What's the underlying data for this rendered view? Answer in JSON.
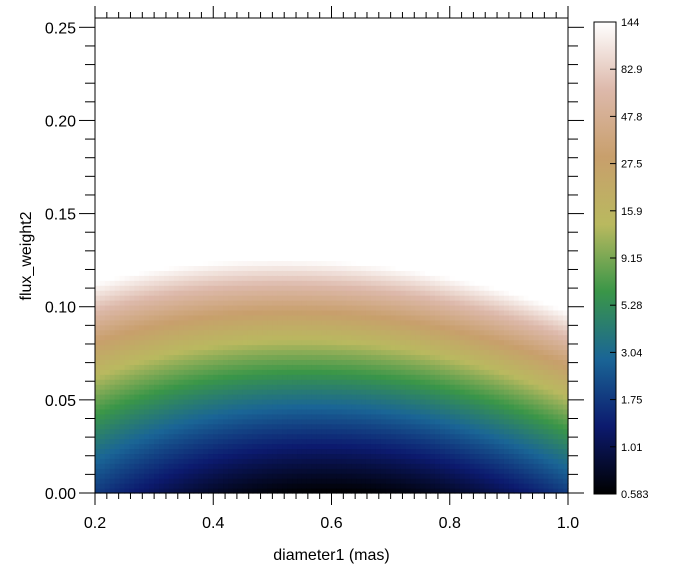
{
  "chart_data": {
    "type": "heatmap",
    "title": "",
    "xlabel": "diameter1 (mas)",
    "ylabel": "flux_weight2",
    "xlim": [
      0.2,
      1.0
    ],
    "ylim": [
      0.0,
      0.255
    ],
    "x_ticks": [
      "0.2",
      "0.4",
      "0.6",
      "0.8",
      "1.0"
    ],
    "y_ticks": [
      "0.00",
      "0.05",
      "0.10",
      "0.15",
      "0.20",
      "0.25"
    ],
    "minimum": {
      "x": 0.6,
      "y": 0.0,
      "value": 0.583
    },
    "z_range": [
      0.583,
      144
    ],
    "colorscale": "log",
    "colorbar": {
      "labels": [
        "144",
        "82.9",
        "47.8",
        "27.5",
        "15.9",
        "9.15",
        "5.28",
        "3.04",
        "1.75",
        "1.01",
        "0.583"
      ]
    },
    "colormap": [
      "#000000",
      "#0c1a6e",
      "#1a6596",
      "#3a9648",
      "#b9b95f",
      "#c89f6c",
      "#ddb9ab",
      "#ffffff"
    ]
  }
}
